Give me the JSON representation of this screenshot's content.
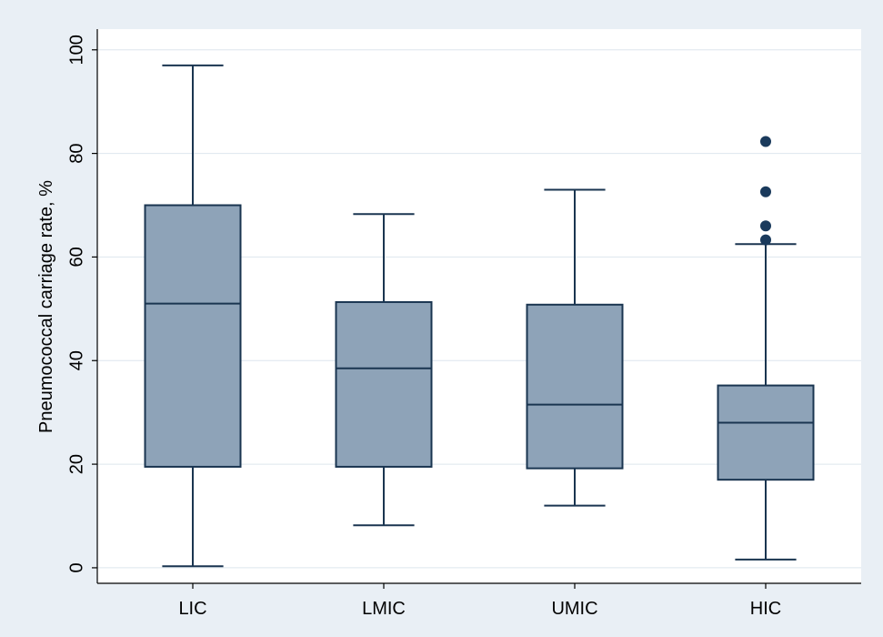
{
  "chart_data": {
    "type": "box",
    "title": "",
    "xlabel": "",
    "ylabel": "Pneumococcal carriage rate, %",
    "ylim": [
      -3,
      104
    ],
    "yticks": [
      0,
      20,
      40,
      60,
      80,
      100
    ],
    "grid": true,
    "legend": "none",
    "colors": {
      "box_fill": "#8ea3b8",
      "box_stroke": "#1a3550",
      "outlier": "#1a3a5c",
      "grid": "#dde6ee",
      "plot_bg": "#ffffff",
      "page_bg": "#e9eff5"
    },
    "categories": [
      "LIC",
      "LMIC",
      "UMIC",
      "HIC"
    ],
    "boxes": [
      {
        "category": "LIC",
        "min": 0.3,
        "q1": 19.5,
        "median": 51.0,
        "q3": 70.0,
        "max": 97.0,
        "outliers": []
      },
      {
        "category": "LMIC",
        "min": 8.2,
        "q1": 19.5,
        "median": 38.5,
        "q3": 51.3,
        "max": 68.3,
        "outliers": []
      },
      {
        "category": "UMIC",
        "min": 12.0,
        "q1": 19.2,
        "median": 31.5,
        "q3": 50.8,
        "max": 73.0,
        "outliers": []
      },
      {
        "category": "HIC",
        "min": 1.6,
        "q1": 17.0,
        "median": 28.0,
        "q3": 35.2,
        "max": 62.5,
        "outliers": [
          63.3,
          66.0,
          72.6,
          82.3
        ]
      }
    ]
  }
}
